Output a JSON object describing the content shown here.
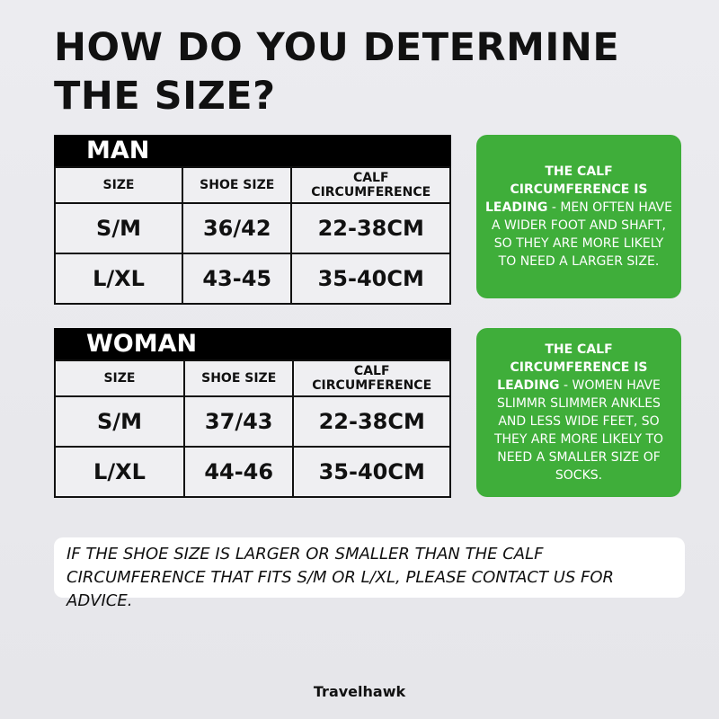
{
  "header": {
    "title_lines": [
      "HOW DO YOU DETERMINE",
      "THE SIZE?"
    ]
  },
  "tables": [
    {
      "label": "MAN",
      "columns": [
        "SIZE",
        "SHOE SIZE",
        "CALF CIRCUMFERENCE"
      ],
      "rows": [
        [
          "S/M",
          "36/42",
          "22-38CM"
        ],
        [
          "L/XL",
          "43-45",
          "35-40CM"
        ]
      ]
    },
    {
      "label": "WOMAN",
      "columns": [
        "SIZE",
        "SHOE SIZE",
        "CALF CIRCUMFERENCE"
      ],
      "rows": [
        [
          "S/M",
          "37/43",
          "22-38CM"
        ],
        [
          "L/XL",
          "44-46",
          "35-40CM"
        ]
      ]
    }
  ],
  "notes": [
    {
      "emphasis": "THE CALF CIRCUMFERENCE IS LEADING",
      "text": "- MEN OFTEN HAVE A WIDER FOOT AND SHAFT, SO THEY ARE MORE LIKELY TO NEED A LARGER SIZE."
    },
    {
      "emphasis": "THE CALF CIRCUMFERENCE IS LEADING",
      "text": "- WOMEN HAVE SLIMMR SLIMMER ANKLES AND LESS WIDE FEET, SO THEY ARE MORE LIKELY TO NEED A SMALLER SIZE OF SOCKS."
    }
  ],
  "advice": "IF THE SHOE SIZE IS LARGER OR SMALLER THAN THE CALF CIRCUMFERENCE THAT FITS S/M OR L/XL, PLEASE CONTACT US FOR ADVICE.",
  "footer": {
    "brand": "Travelhawk"
  }
}
